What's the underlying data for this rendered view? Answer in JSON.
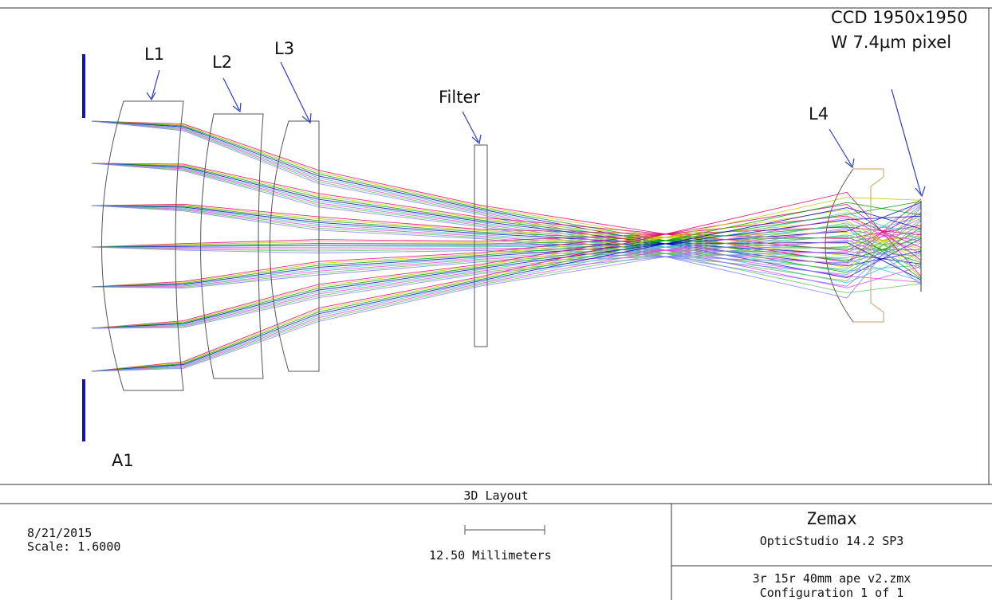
{
  "labels": {
    "L1": "L1",
    "L2": "L2",
    "L3": "L3",
    "filter": "Filter",
    "L4": "L4",
    "ccd_line1": "CCD 1950x1950",
    "ccd_line2": "W 7.4µm pixel",
    "A1": "A1"
  },
  "footer": {
    "title": "3D Layout",
    "date": "8/21/2015",
    "scale": "Scale:  1.6000",
    "scale_bar_text": "12.50 Millimeters",
    "brand": "Zemax",
    "product": "OpticStudio 14.2 SP3",
    "file": "3r 15r 40mm ape v2.zmx",
    "configuration": "Configuration 1 of 1"
  },
  "colors": {
    "aperture": "#1010c8",
    "arrow": "#2a3cc8",
    "lens": "#555555",
    "l4_lens": "#c8a060",
    "rays": [
      "#e00070",
      "#c8c800",
      "#00a000",
      "#0000c0",
      "#40c0c0",
      "#e040e0",
      "#60c060",
      "#8080ff"
    ]
  }
}
